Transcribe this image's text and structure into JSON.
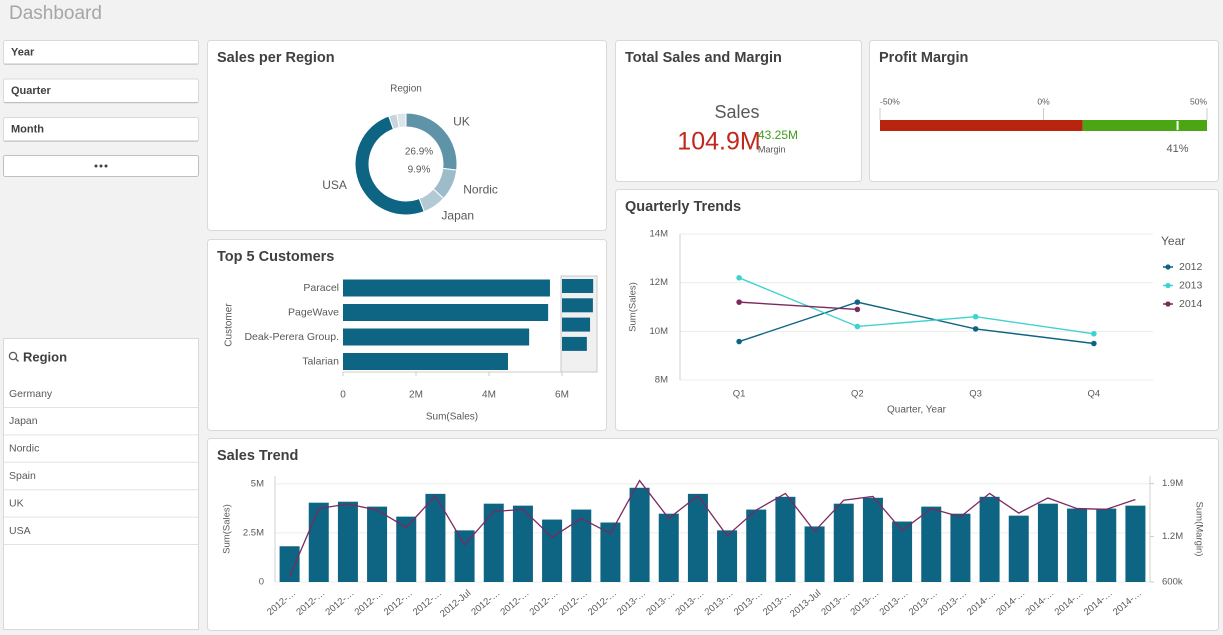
{
  "header": {
    "title": "Dashboard"
  },
  "filters": {
    "fields": [
      "Year",
      "Quarter",
      "Month"
    ]
  },
  "region_filter": {
    "title": "Region",
    "items": [
      "Germany",
      "Japan",
      "Nordic",
      "Spain",
      "UK",
      "USA"
    ]
  },
  "chart_data": [
    {
      "type": "donut",
      "title": "Sales per Region",
      "legend_title": "Region",
      "categories": [
        "UK",
        "Nordic",
        "Japan",
        "USA",
        null,
        null
      ],
      "values": [
        26.9,
        9.9,
        7.4,
        50.3,
        2.6,
        2.9
      ],
      "value_labels": [
        "26.9%",
        "9.9%",
        null,
        null,
        null,
        null
      ],
      "colors": [
        "#5f93a8",
        "#9dbbc8",
        "#b3cad4",
        "#0d6483",
        "#c6d5dc",
        "#dbe4e8"
      ]
    },
    {
      "type": "bar",
      "title": "Top 5 Customers",
      "categories": [
        "Paracel",
        "PageWave",
        "Deak-Perera Group.",
        "Talarian"
      ],
      "values": [
        5670000,
        5620000,
        5100000,
        4520000
      ],
      "color": "#0d6483",
      "xlim": [
        0,
        6000000
      ],
      "xticks": [
        0,
        {
          "value": 2000000,
          "label": "2M"
        },
        {
          "value": 4000000,
          "label": "4M"
        },
        {
          "value": 6000000,
          "label": "6M"
        }
      ],
      "x_label": "Sum(Sales)",
      "y_label": "Customer"
    },
    {
      "type": "kpi",
      "title": "Total Sales and Margin",
      "labels": [
        "Sales",
        "Margin"
      ],
      "values": [
        104900000,
        43250000
      ],
      "value_labels": [
        "104.9M",
        "43.25M"
      ],
      "colors": [
        "#c0281b",
        "#3e9e1a"
      ]
    },
    {
      "type": "gauge",
      "title": "Profit Margin",
      "xlim": [
        -50,
        50
      ],
      "xticks": [
        {
          "value": -50,
          "label": "-50%"
        },
        {
          "value": 0,
          "label": "0%"
        },
        {
          "value": 50,
          "label": "50%"
        }
      ],
      "bands": [
        {
          "from": -50,
          "to": 12,
          "color": "#b8250f"
        },
        {
          "from": 12,
          "to": 50,
          "color": "#4ba614"
        }
      ],
      "value": 41,
      "value_label": "41%"
    },
    {
      "type": "line",
      "title": "Quarterly Trends",
      "categories": [
        "Q1",
        "Q2",
        "Q3",
        "Q4"
      ],
      "series": [
        {
          "name": "2012",
          "color": "#0d6483",
          "values": [
            9580000,
            11200000,
            10100000,
            9500000
          ]
        },
        {
          "name": "2013",
          "color": "#3fd3cf",
          "values": [
            12200000,
            10200000,
            10600000,
            9900000
          ]
        },
        {
          "name": "2014",
          "color": "#7b2a5f",
          "values": [
            11200000,
            10900000,
            null,
            null
          ]
        }
      ],
      "ylim": [
        8000000,
        14000000
      ],
      "yticks": [
        {
          "value": 8000000,
          "label": "8M"
        },
        {
          "value": 10000000,
          "label": "10M"
        },
        {
          "value": 12000000,
          "label": "12M"
        },
        {
          "value": 14000000,
          "label": "14M"
        }
      ],
      "x_label": "Quarter, Year",
      "y_label": "Sum(Sales)",
      "legend_title": "Year",
      "grid": true
    },
    {
      "type": "combo",
      "title": "Sales Trend",
      "categories": [
        "2012-…",
        "2012-…",
        "2012-…",
        "2012-…",
        "2012-…",
        "2012-…",
        "2012-Jul",
        "2012-…",
        "2012-…",
        "2012-…",
        "2012-…",
        "2012-…",
        "2013-…",
        "2013-…",
        "2013-…",
        "2013-…",
        "2013-…",
        "2013-…",
        "2013-Jul",
        "2013-…",
        "2013-…",
        "2013-…",
        "2013-…",
        "2013-…",
        "2014-…",
        "2014-…",
        "2014-…",
        "2014-…",
        "2014-…",
        "2014-…"
      ],
      "series": [
        {
          "type": "bar",
          "color": "#0d6483",
          "values": [
            1820000,
            4040000,
            4090000,
            3840000,
            3330000,
            4490000,
            2630000,
            3990000,
            3890000,
            3180000,
            3690000,
            3030000,
            4800000,
            3480000,
            4490000,
            2630000,
            3690000,
            4340000,
            2830000,
            3990000,
            4290000,
            3080000,
            3840000,
            3480000,
            4340000,
            3380000,
            3990000,
            3740000,
            3740000,
            3890000
          ]
        },
        {
          "type": "line",
          "axis": "y2",
          "color": "#7b2a5f",
          "values": [
            670000,
            1570000,
            1630000,
            1550000,
            1320000,
            1740000,
            1090000,
            1530000,
            1560000,
            1190000,
            1440000,
            1240000,
            1940000,
            1440000,
            1740000,
            1210000,
            1550000,
            1770000,
            1270000,
            1680000,
            1730000,
            1280000,
            1570000,
            1460000,
            1770000,
            1510000,
            1710000,
            1570000,
            1560000,
            1690000
          ]
        }
      ],
      "ylim": [
        0,
        5400000
      ],
      "yticks": [
        0,
        {
          "value": 2500000,
          "label": "2.5M"
        },
        {
          "value": 5000000,
          "label": "5M"
        }
      ],
      "y2lim": [
        600000,
        2000000
      ],
      "y2ticks": [
        {
          "value": 600000,
          "label": "600k"
        },
        {
          "value": 1200000,
          "label": "1.2M"
        },
        {
          "value": 1900000,
          "label": "1.9M"
        }
      ],
      "y_label": "Sum(Sales)",
      "y2_label": "Sum(Margin)",
      "grid": true
    }
  ]
}
